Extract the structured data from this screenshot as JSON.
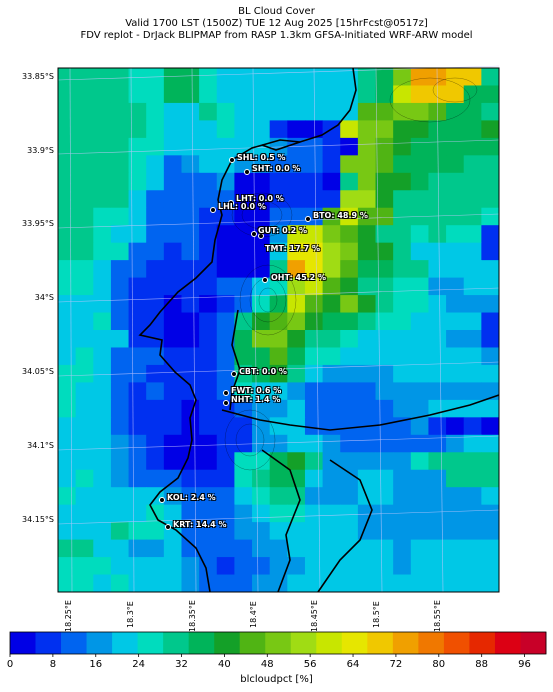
{
  "header": {
    "title": "BL Cloud Cover",
    "valid_line": "Valid 1700 LST (1500Z) TUE 12 Aug 2025 [15hrFcst@0517z]",
    "source_line": "FDV replot - DrJack BLIPMAP from RASP 1.3km GFSA-Initiated WRF-ARW model"
  },
  "axes": {
    "lat_labels": [
      "33.85°S",
      "33.9°S",
      "33.95°S",
      "34°S",
      "34.05°S",
      "34.1°S",
      "34.15°S"
    ],
    "lon_labels": [
      "18.25°E",
      "18.3°E",
      "18.35°E",
      "18.4°E",
      "18.45°E",
      "18.5°E",
      "18.55°E"
    ]
  },
  "colorbar": {
    "title": "blcloudpct [%]",
    "tick_labels": [
      "0",
      "8",
      "16",
      "24",
      "32",
      "40",
      "48",
      "56",
      "64",
      "72",
      "80",
      "88",
      "96"
    ],
    "colors": [
      "#0000e6",
      "#0030f0",
      "#0064f0",
      "#0096e6",
      "#00c8e6",
      "#00dcbe",
      "#00c88c",
      "#00b45a",
      "#14a028",
      "#50b414",
      "#78c814",
      "#a0dc14",
      "#c8e600",
      "#e6e600",
      "#f0c800",
      "#f0a000",
      "#f07800",
      "#f05000",
      "#e62800",
      "#dc0014",
      "#c80028"
    ]
  },
  "sites": [
    {
      "name": "SHL",
      "label": "SHL: 0.5 %"
    },
    {
      "name": "SHT",
      "label": "SHT: 0.0 %"
    },
    {
      "name": "LHT",
      "label": "LHT: 0.0 %"
    },
    {
      "name": "LHL",
      "label": "LHL: 0.0 %"
    },
    {
      "name": "BTO",
      "label": "BTO: 48.9 %"
    },
    {
      "name": "GUT",
      "label": "GUT: 0.2 %"
    },
    {
      "name": "TMT",
      "label": "TMT: 17.7 %"
    },
    {
      "name": "OHT",
      "label": "OHT: 45.2 %"
    },
    {
      "name": "CBT",
      "label": "CBT: 0.0 %"
    },
    {
      "name": "FWT",
      "label": "FWT: 0.6 %"
    },
    {
      "name": "NHT",
      "label": "NHT: 1.4 %"
    },
    {
      "name": "KOL",
      "label": "KOL: 2.4 %"
    },
    {
      "name": "KRT",
      "label": "KRT: 14.4 %"
    }
  ]
}
